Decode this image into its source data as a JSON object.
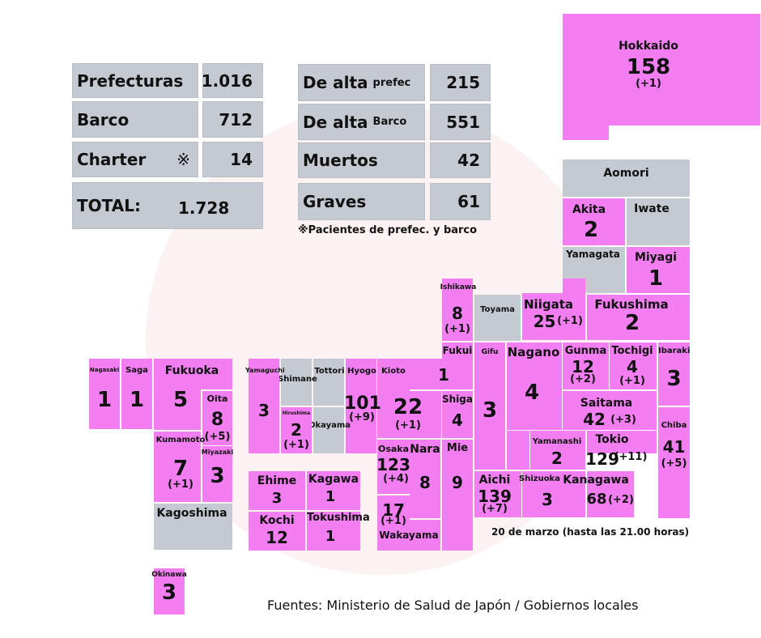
{
  "stats_left": [
    {
      "label": "Prefecturas",
      "value": "1.016"
    },
    {
      "label": "Barco",
      "value": "712"
    },
    {
      "label": "Charter",
      "mark": "※",
      "value": "14"
    },
    {
      "label": "TOTAL:",
      "value": "1.728"
    }
  ],
  "stats_right": [
    {
      "label": "De alta",
      "sub": "prefec",
      "value": "215"
    },
    {
      "label": "De alta",
      "sub": "Barco",
      "value": "551"
    },
    {
      "label": "Muertos",
      "value": "42"
    },
    {
      "label": "Graves",
      "value": "61"
    }
  ],
  "footnote": "※Pacientes de prefec. y barco",
  "date_note": "20 de marzo (hasta las 21.00 horas)",
  "source": "Fuentes: Ministerio de Salud de Japón / Gobiernos locales",
  "colors": {
    "reported": "#f27ef2",
    "none": "#c5cad2"
  },
  "prefectures": [
    {
      "name": "Hokkaido",
      "count": "158",
      "delta": "(+1)"
    },
    {
      "name": "Aomori"
    },
    {
      "name": "Iwate"
    },
    {
      "name": "Akita",
      "count": "2"
    },
    {
      "name": "Miyagi",
      "count": "1"
    },
    {
      "name": "Yamagata"
    },
    {
      "name": "Fukushima",
      "count": "2"
    },
    {
      "name": "Niigata",
      "count": "25",
      "delta": "(+1)"
    },
    {
      "name": "Toyama"
    },
    {
      "name": "Ishikawa",
      "count": "8",
      "delta": "(+1)"
    },
    {
      "name": "Fukui",
      "count": "1"
    },
    {
      "name": "Kioto",
      "count": "22",
      "delta": "(+1)"
    },
    {
      "name": "Shiga",
      "count": "4"
    },
    {
      "name": "Hyogo",
      "count": "101",
      "delta": "(+9)"
    },
    {
      "name": "Tottori"
    },
    {
      "name": "Shimane"
    },
    {
      "name": "Okayama"
    },
    {
      "name": "Hiroshima",
      "count": "2",
      "delta": "(+1)"
    },
    {
      "name": "Yamaguchi",
      "count": "3"
    },
    {
      "name": "Osaka",
      "count": "123",
      "delta": "(+4)"
    },
    {
      "name": "Nara",
      "count": "8"
    },
    {
      "name": "Mie",
      "count": "9"
    },
    {
      "name": "Wakayama",
      "count": "17",
      "delta": "(+1)"
    },
    {
      "name": "Gifu",
      "count": "3"
    },
    {
      "name": "Nagano",
      "count": "4"
    },
    {
      "name": "Gunma",
      "count": "12",
      "delta": "(+2)"
    },
    {
      "name": "Tochigi",
      "count": "4",
      "delta": "(+1)"
    },
    {
      "name": "Ibaraki",
      "count": "3"
    },
    {
      "name": "Saitama",
      "count": "42",
      "delta": "(+3)"
    },
    {
      "name": "Yamanashi",
      "count": "2"
    },
    {
      "name": "Tokio",
      "count": "129",
      "delta": "(+11)"
    },
    {
      "name": "Chiba",
      "count": "41",
      "delta": "(+5)"
    },
    {
      "name": "Aichi",
      "count": "139",
      "delta": "(+7)"
    },
    {
      "name": "Shizuoka",
      "count": "3"
    },
    {
      "name": "Kanagawa",
      "count": "68",
      "delta": "(+2)"
    },
    {
      "name": "Nagasaki",
      "count": "1"
    },
    {
      "name": "Saga",
      "count": "1"
    },
    {
      "name": "Fukuoka",
      "count": "5"
    },
    {
      "name": "Oita",
      "count": "8",
      "delta": "(+5)"
    },
    {
      "name": "Kumamoto",
      "count": "7",
      "delta": "(+1)"
    },
    {
      "name": "Miyazaki",
      "count": "3"
    },
    {
      "name": "Kagoshima"
    },
    {
      "name": "Okinawa",
      "count": "3"
    },
    {
      "name": "Ehime",
      "count": "3"
    },
    {
      "name": "Kagawa",
      "count": "1"
    },
    {
      "name": "Kochi",
      "count": "12"
    },
    {
      "name": "Tokushima",
      "count": "1"
    }
  ]
}
